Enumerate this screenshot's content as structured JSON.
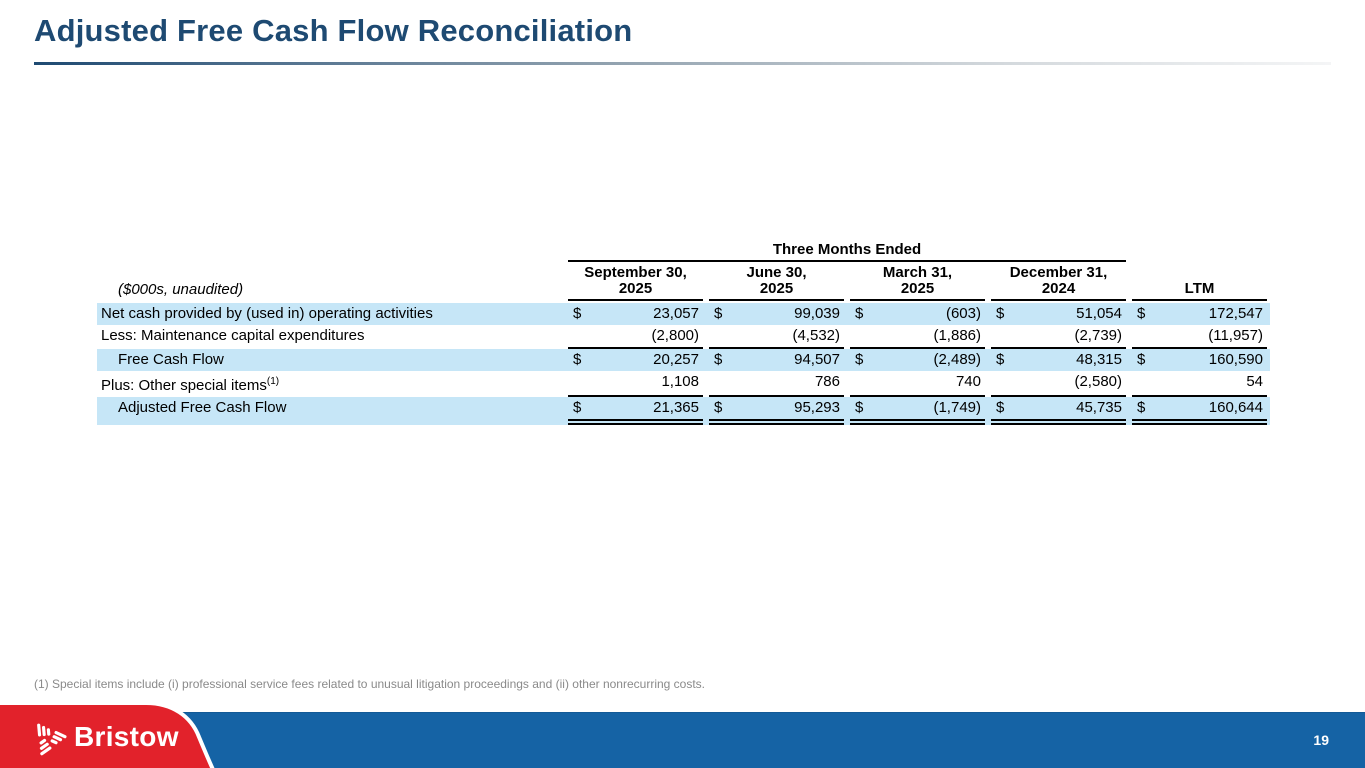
{
  "slide": {
    "title": "Adjusted Free Cash Flow Reconciliation",
    "footnote": "(1) Special items include (i) professional service fees related to unusual litigation proceedings and (ii) other nonrecurring costs.",
    "page_number": "19",
    "logo_text": "Bristow"
  },
  "table": {
    "group_header": "Three Months Ended",
    "unit_label": "($000s, unaudited)",
    "dollar_sign": "$",
    "columns": [
      {
        "line1": "September 30,",
        "line2": "2025"
      },
      {
        "line1": "June 30,",
        "line2": "2025"
      },
      {
        "line1": "March 31,",
        "line2": "2025"
      },
      {
        "line1": "December 31,",
        "line2": "2024"
      },
      {
        "line1": "LTM",
        "line2": ""
      }
    ],
    "rows": [
      {
        "label": "Net cash provided by (used in) operating activities",
        "superscript": "",
        "indent": false,
        "highlight": true,
        "dollar": true,
        "rule_below": false,
        "double_rule_below": false,
        "values": [
          "23,057",
          "99,039",
          "(603)",
          "51,054",
          "172,547"
        ]
      },
      {
        "label": "Less: Maintenance capital expenditures",
        "superscript": "",
        "indent": false,
        "highlight": false,
        "dollar": false,
        "rule_below": true,
        "double_rule_below": false,
        "values": [
          "(2,800)",
          "(4,532)",
          "(1,886)",
          "(2,739)",
          "(11,957)"
        ]
      },
      {
        "label": "Free Cash Flow",
        "superscript": "",
        "indent": true,
        "highlight": true,
        "dollar": true,
        "rule_below": false,
        "double_rule_below": false,
        "values": [
          "20,257",
          "94,507",
          "(2,489)",
          "48,315",
          "160,590"
        ]
      },
      {
        "label": "Plus: Other special items",
        "superscript": "(1)",
        "indent": false,
        "highlight": false,
        "dollar": false,
        "rule_below": true,
        "double_rule_below": false,
        "values": [
          "1,108",
          "786",
          "740",
          "(2,580)",
          "54"
        ]
      },
      {
        "label": "Adjusted Free Cash Flow",
        "superscript": "",
        "indent": true,
        "highlight": true,
        "dollar": true,
        "rule_below": false,
        "double_rule_below": true,
        "values": [
          "21,365",
          "95,293",
          "(1,749)",
          "45,735",
          "160,644"
        ]
      }
    ]
  },
  "colors": {
    "title_blue": "#1E4A72",
    "row_highlight": "#C6E6F7",
    "footer_blue": "#1563A5",
    "brand_red": "#E2222B",
    "footnote_gray": "#8A8A8A"
  }
}
